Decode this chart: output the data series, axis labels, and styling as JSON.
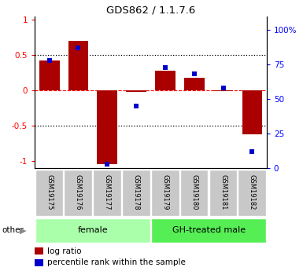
{
  "title": "GDS862 / 1.1.7.6",
  "samples": [
    "GSM19175",
    "GSM19176",
    "GSM19177",
    "GSM19178",
    "GSM19179",
    "GSM19180",
    "GSM19181",
    "GSM19182"
  ],
  "log_ratio": [
    0.42,
    0.7,
    -1.05,
    -0.02,
    0.28,
    0.18,
    -0.01,
    -0.62
  ],
  "percentile_rank": [
    78,
    87,
    3,
    45,
    73,
    68,
    58,
    12
  ],
  "bar_color": "#AA0000",
  "dot_color": "#0000CC",
  "ylim_left": [
    -1.1,
    1.05
  ],
  "ylim_right": [
    0,
    110
  ],
  "yticks_left": [
    -1,
    -0.5,
    0,
    0.5,
    1
  ],
  "ytick_labels_left": [
    "-1",
    "-0.5",
    "0",
    "0.5",
    "1"
  ],
  "yticks_right": [
    0,
    25,
    50,
    75,
    100
  ],
  "ytick_labels_right": [
    "0",
    "25",
    "50",
    "75",
    "100%"
  ],
  "hlines_dotted": [
    0.5,
    -0.5
  ],
  "hline_dashed": 0,
  "group_female": {
    "label": "female",
    "start": 0,
    "end": 3
  },
  "group_male": {
    "label": "GH-treated male",
    "start": 4,
    "end": 7
  },
  "group_color_female": "#aaffaa",
  "group_color_male": "#55ee55",
  "legend_items": [
    "log ratio",
    "percentile rank within the sample"
  ],
  "other_label": "other",
  "background_color": "#ffffff"
}
